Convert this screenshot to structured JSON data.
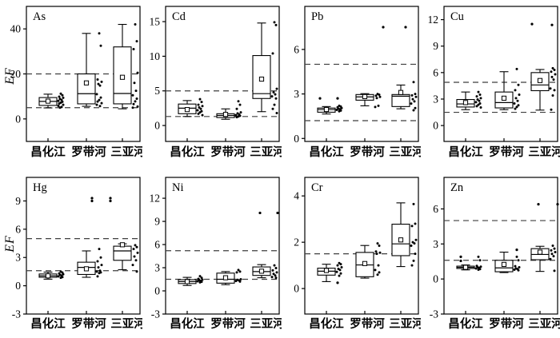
{
  "figure": {
    "ylabel": "EF",
    "categories": [
      "昌化江",
      "罗带河",
      "三亚河"
    ],
    "background_color": "#ffffff",
    "line_color": "#000000",
    "dash_line_color": "#3f3f3f"
  },
  "chart_data": [
    {
      "type": "box",
      "label": "As",
      "ylim": [
        -10,
        50
      ],
      "yticks": [
        0,
        20,
        40
      ],
      "dashed_lines": [
        5,
        20
      ],
      "groups": [
        {
          "category": "昌化江",
          "low": 4.9,
          "q1": 6.0,
          "median": 7.8,
          "q3": 9.5,
          "high": 11.0,
          "mean": 7.9,
          "outliers": [],
          "points": [
            11.2,
            10.5,
            9.9,
            9.4,
            8.9,
            8.4,
            8.0,
            7.6,
            7.2,
            6.8,
            6.3,
            5.8,
            5.3,
            5.0
          ]
        },
        {
          "category": "罗带河",
          "low": 5.6,
          "q1": 6.7,
          "median": 11.2,
          "q3": 20.0,
          "high": 38.0,
          "mean": 16.0,
          "outliers": [],
          "points": [
            38.0,
            32.5,
            17.5,
            16.5,
            15.5,
            14.8,
            11.0,
            9.5,
            8.4,
            7.7,
            7.0,
            6.3,
            5.7
          ]
        },
        {
          "category": "三亚河",
          "low": 4.5,
          "q1": 6.7,
          "median": 11.3,
          "q3": 32.0,
          "high": 42.0,
          "mean": 18.5,
          "outliers": [],
          "points": [
            42.0,
            34.5,
            31.0,
            20.5,
            16.0,
            12.5,
            10.5,
            9.0,
            7.8,
            6.6,
            5.5,
            5.0
          ]
        }
      ]
    },
    {
      "type": "box",
      "label": "Cd",
      "ylim": [
        -2.3,
        17.2
      ],
      "yticks": [
        0,
        5,
        10,
        15
      ],
      "dashed_lines": [
        1.3,
        5
      ],
      "groups": [
        {
          "category": "昌化江",
          "low": 1.3,
          "q1": 1.7,
          "median": 2.5,
          "q3": 3.1,
          "high": 3.6,
          "mean": 2.3,
          "outliers": [],
          "points": [
            3.8,
            3.4,
            3.0,
            2.8,
            2.6,
            2.4,
            2.2,
            2.05,
            1.9,
            1.7,
            1.5
          ]
        },
        {
          "category": "罗带河",
          "low": 0.9,
          "q1": 1.15,
          "median": 1.45,
          "q3": 1.7,
          "high": 2.4,
          "mean": 1.6,
          "outliers": [],
          "points": [
            3.5,
            3.0,
            2.4,
            1.9,
            1.75,
            1.6,
            1.5,
            1.4,
            1.3,
            1.2
          ]
        },
        {
          "category": "三亚河",
          "low": 2.0,
          "q1": 3.9,
          "median": 4.6,
          "q3": 10.1,
          "high": 14.8,
          "mean": 6.7,
          "outliers": [],
          "points": [
            14.9,
            14.5,
            10.4,
            5.3,
            4.8,
            4.5,
            4.2,
            3.9,
            3.0,
            2.4,
            1.8
          ]
        }
      ]
    },
    {
      "type": "box",
      "label": "Pb",
      "ylim": [
        -0.2,
        8.9
      ],
      "yticks": [
        0,
        3,
        6
      ],
      "dashed_lines": [
        1.2,
        5.0
      ],
      "groups": [
        {
          "category": "昌化江",
          "low": 1.65,
          "q1": 1.77,
          "median": 1.95,
          "q3": 2.05,
          "high": 2.15,
          "mean": 1.95,
          "outliers": [
            {
              "v": 2.7,
              "dx": -8
            },
            {
              "v": 2.7,
              "dx": 14
            }
          ],
          "points": [
            2.2,
            2.15,
            2.1,
            2.05,
            2.0,
            1.97,
            1.93,
            1.88,
            1.83
          ]
        },
        {
          "category": "罗带河",
          "low": 2.2,
          "q1": 2.58,
          "median": 2.8,
          "q3": 2.96,
          "high": 3.02,
          "mean": 2.82,
          "outliers": [],
          "points": [
            3.0,
            2.95,
            2.88,
            2.8,
            2.72,
            2.2,
            2.12
          ]
        },
        {
          "category": "三亚河",
          "low": 2.0,
          "q1": 2.15,
          "median": 2.85,
          "q3": 2.96,
          "high": 3.6,
          "mean": 3.1,
          "outliers": [
            {
              "v": 7.5,
              "dx": -22
            },
            {
              "v": 7.5,
              "dx": 6
            }
          ],
          "points": [
            3.8,
            3.0,
            2.9,
            2.8,
            2.65,
            2.5,
            2.35,
            2.05,
            1.9
          ]
        }
      ]
    },
    {
      "type": "box",
      "label": "Cu",
      "ylim": [
        -1.8,
        13.5
      ],
      "yticks": [
        0,
        3,
        6,
        9,
        12
      ],
      "dashed_lines": [
        1.5,
        4.9
      ],
      "groups": [
        {
          "category": "昌化江",
          "low": 1.8,
          "q1": 2.1,
          "median": 2.45,
          "q3": 2.95,
          "high": 3.8,
          "mean": 2.6,
          "outliers": [],
          "points": [
            3.8,
            3.5,
            3.3,
            3.1,
            2.95,
            2.8,
            2.65,
            2.5,
            2.35,
            2.2,
            2.05
          ]
        },
        {
          "category": "罗带河",
          "low": 1.8,
          "q1": 2.0,
          "median": 2.6,
          "q3": 3.8,
          "high": 6.1,
          "mean": 3.1,
          "outliers": [],
          "points": [
            6.4,
            4.6,
            4.0,
            3.5,
            3.1,
            2.8,
            2.5,
            2.3,
            2.1,
            1.9
          ]
        },
        {
          "category": "三亚河",
          "low": 1.75,
          "q1": 3.95,
          "median": 4.6,
          "q3": 6.0,
          "high": 6.35,
          "mean": 5.1,
          "outliers": [
            {
              "v": 11.5,
              "dx": -10
            },
            {
              "v": 11.4,
              "dx": 15
            }
          ],
          "points": [
            6.5,
            6.3,
            6.1,
            5.8,
            5.5,
            5.2,
            4.2,
            4.0,
            3.4,
            1.8
          ]
        }
      ]
    },
    {
      "type": "box",
      "label": "Hg",
      "ylim": [
        -3,
        11.5
      ],
      "yticks": [
        -3,
        0,
        3,
        6,
        9
      ],
      "dashed_lines": [
        1.6,
        5.0
      ],
      "groups": [
        {
          "category": "昌化江",
          "low": 0.7,
          "q1": 0.9,
          "median": 1.05,
          "q3": 1.25,
          "high": 1.45,
          "mean": 1.05,
          "outliers": [],
          "points": [
            1.5,
            1.4,
            1.3,
            1.22,
            1.15,
            1.08,
            1.0,
            0.92,
            0.85
          ]
        },
        {
          "category": "罗带河",
          "low": 0.9,
          "q1": 1.2,
          "median": 1.95,
          "q3": 2.5,
          "high": 3.7,
          "mean": 1.8,
          "outliers": [],
          "points": [
            3.9,
            3.0,
            2.6,
            2.2,
            1.95,
            1.6,
            1.5,
            1.42,
            1.35,
            1.0
          ]
        },
        {
          "category": "三亚河",
          "low": 1.7,
          "q1": 2.7,
          "median": 3.7,
          "q3": 4.2,
          "high": 4.45,
          "mean": 4.35,
          "outliers": [
            {
              "v": 9.3,
              "dx": -38
            },
            {
              "v": 9.0,
              "dx": -38
            },
            {
              "v": 9.3,
              "dx": -15
            },
            {
              "v": 9.0,
              "dx": -15
            }
          ],
          "points": [
            4.3,
            4.1,
            3.9,
            3.5,
            3.1,
            2.7,
            2.2,
            1.5
          ]
        }
      ]
    },
    {
      "type": "box",
      "label": "Ni",
      "ylim": [
        -3,
        14.7
      ],
      "yticks": [
        -3,
        0,
        3,
        6,
        9,
        12
      ],
      "dashed_lines": [
        1.5,
        5.2
      ],
      "groups": [
        {
          "category": "昌化江",
          "low": 0.7,
          "q1": 0.95,
          "median": 1.2,
          "q3": 1.45,
          "high": 1.75,
          "mean": 1.2,
          "outliers": [],
          "points": [
            1.9,
            1.7,
            1.55,
            1.45,
            1.38,
            1.3,
            1.24,
            1.18,
            1.1
          ]
        },
        {
          "category": "罗带河",
          "low": 0.8,
          "q1": 1.0,
          "median": 1.5,
          "q3": 2.3,
          "high": 2.5,
          "mean": 1.7,
          "outliers": [],
          "points": [
            2.7,
            2.5,
            2.4,
            1.5,
            1.42,
            1.35,
            1.28,
            1.2
          ]
        },
        {
          "category": "三亚河",
          "low": 1.7,
          "q1": 2.0,
          "median": 2.5,
          "q3": 3.1,
          "high": 3.4,
          "mean": 2.55,
          "outliers": [
            {
              "v": 10.1,
              "dx": -2
            },
            {
              "v": 10.1,
              "dx": 20
            }
          ],
          "points": [
            3.3,
            2.95,
            2.65,
            2.4,
            2.2,
            2.0,
            1.8,
            1.7
          ]
        }
      ]
    },
    {
      "type": "box",
      "label": "Cr",
      "ylim": [
        -1.1,
        4.8
      ],
      "yticks": [
        0,
        2,
        4
      ],
      "dashed_lines": [
        1.5
      ],
      "groups": [
        {
          "category": "昌化江",
          "low": 0.3,
          "q1": 0.58,
          "median": 0.75,
          "q3": 0.88,
          "high": 1.05,
          "mean": 0.78,
          "outliers": [
            {
              "v": 0.25,
              "dx": 14
            }
          ],
          "points": [
            1.1,
            1.05,
            1.0,
            0.92,
            0.85,
            0.8,
            0.72,
            0.65,
            0.55
          ]
        },
        {
          "category": "罗带河",
          "low": 0.45,
          "q1": 0.51,
          "median": 1.02,
          "q3": 1.56,
          "high": 1.86,
          "mean": 1.08,
          "outliers": [],
          "points": [
            1.95,
            1.85,
            1.6,
            1.55,
            1.5,
            1.0,
            0.8,
            0.7,
            0.6
          ]
        },
        {
          "category": "三亚河",
          "low": 0.95,
          "q1": 1.42,
          "median": 1.93,
          "q3": 2.78,
          "high": 3.7,
          "mean": 2.1,
          "outliers": [],
          "points": [
            3.65,
            2.8,
            2.7,
            2.1,
            2.0,
            1.95,
            1.85,
            1.5,
            1.2,
            1.0
          ]
        }
      ]
    },
    {
      "type": "box",
      "label": "Zn",
      "ylim": [
        -3,
        8.7
      ],
      "yticks": [
        -3,
        0,
        3,
        6
      ],
      "dashed_lines": [
        1.6,
        5.0
      ],
      "groups": [
        {
          "category": "昌化江",
          "low": 0.78,
          "q1": 0.9,
          "median": 1.0,
          "q3": 1.1,
          "high": 1.2,
          "mean": 1.0,
          "outliers": [
            {
              "v": 1.9,
              "dx": -6
            },
            {
              "v": 1.55,
              "dx": -6
            }
          ],
          "points": [
            1.9,
            1.6,
            1.12,
            1.05,
            1.0,
            0.95,
            0.9,
            0.85,
            0.8
          ]
        },
        {
          "category": "罗带河",
          "low": 0.55,
          "q1": 0.62,
          "median": 0.95,
          "q3": 1.6,
          "high": 2.3,
          "mean": 1.25,
          "outliers": [
            {
              "v": 2.5,
              "dx": 16
            }
          ],
          "points": [
            1.9,
            1.6,
            1.1,
            1.0,
            0.9,
            0.85,
            0.8,
            0.75
          ]
        },
        {
          "category": "三亚河",
          "low": 0.65,
          "q1": 1.65,
          "median": 2.1,
          "q3": 2.6,
          "high": 2.8,
          "mean": 2.3,
          "outliers": [
            {
              "v": 6.4,
              "dx": -2
            },
            {
              "v": 6.4,
              "dx": 22
            }
          ],
          "points": [
            2.85,
            2.6,
            2.45,
            2.3,
            2.15,
            1.95,
            1.7,
            0.7
          ]
        }
      ]
    }
  ]
}
